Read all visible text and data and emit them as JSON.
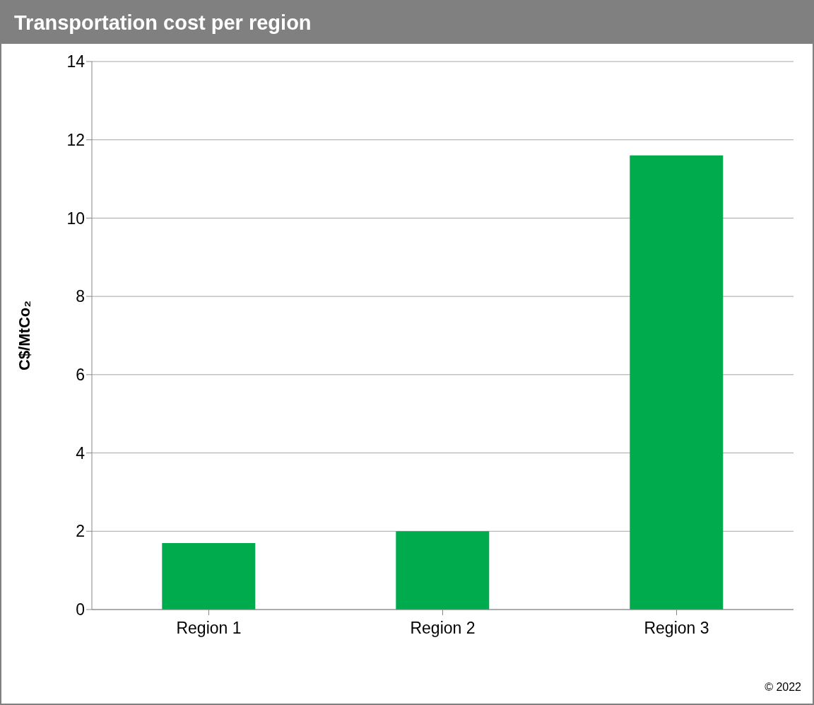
{
  "chart_data": {
    "type": "bar",
    "title": "Transportation cost per region",
    "ylabel": "C$/MtCo₂",
    "categories": [
      "Region 1",
      "Region 2",
      "Region 3"
    ],
    "values": [
      1.7,
      2.0,
      11.6
    ],
    "color": "#00ab4e",
    "ylim": [
      0,
      14
    ],
    "yticks": [
      0,
      2,
      4,
      6,
      8,
      10,
      12,
      14
    ],
    "grid": "y",
    "annotations": [
      "© 2022"
    ]
  }
}
